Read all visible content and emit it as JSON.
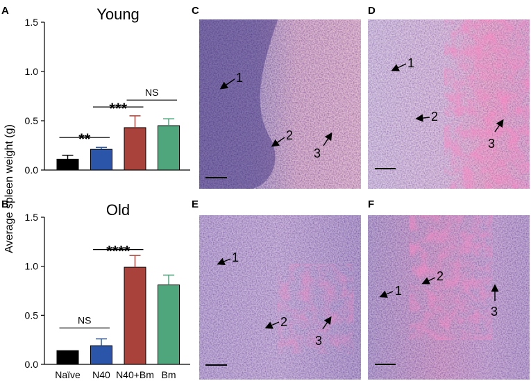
{
  "chart_data": [
    {
      "type": "bar",
      "panel": "A",
      "title": "Young",
      "categories": [
        "Naïve",
        "N40",
        "N40+Bm",
        "Bm"
      ],
      "values": [
        0.11,
        0.21,
        0.43,
        0.45
      ],
      "errors": [
        0.04,
        0.02,
        0.12,
        0.07
      ],
      "colors": [
        "#000000",
        "#2a55a8",
        "#a8423a",
        "#4fa67c"
      ],
      "ylim": [
        0,
        1.5
      ],
      "yticks": [
        "0.0",
        "0.5",
        "1.0",
        "1.5"
      ],
      "annotations": [
        {
          "label": "**",
          "from": 0,
          "to": 1,
          "at": 0.33
        },
        {
          "label": "***",
          "from": 1,
          "to": 2,
          "at": 0.64
        },
        {
          "label": "NS",
          "from": 2,
          "to": 3,
          "at": 0.71
        }
      ]
    },
    {
      "type": "bar",
      "panel": "B",
      "title": "Old",
      "categories": [
        "Naïve",
        "N40",
        "N40+Bm",
        "Bm"
      ],
      "values": [
        0.14,
        0.19,
        0.99,
        0.81
      ],
      "errors": [
        0.0,
        0.07,
        0.12,
        0.1
      ],
      "colors": [
        "#000000",
        "#2a55a8",
        "#a8423a",
        "#4fa67c"
      ],
      "ylim": [
        0,
        1.5
      ],
      "yticks": [
        "0.0",
        "0.5",
        "1.0",
        "1.5"
      ],
      "annotations": [
        {
          "label": "NS",
          "from": 0,
          "to": 1,
          "at": 0.37
        },
        {
          "label": "****",
          "from": 1,
          "to": 2,
          "at": 1.17
        }
      ]
    }
  ],
  "ylabel": "Average spleen weight (g)",
  "micrographs": [
    {
      "letter": "C",
      "labels": [
        "1",
        "2",
        "3"
      ]
    },
    {
      "letter": "D",
      "labels": [
        "1",
        "2",
        "3"
      ]
    },
    {
      "letter": "E",
      "labels": [
        "1",
        "2",
        "3"
      ]
    },
    {
      "letter": "F",
      "labels": [
        "1",
        "2",
        "3"
      ]
    }
  ]
}
